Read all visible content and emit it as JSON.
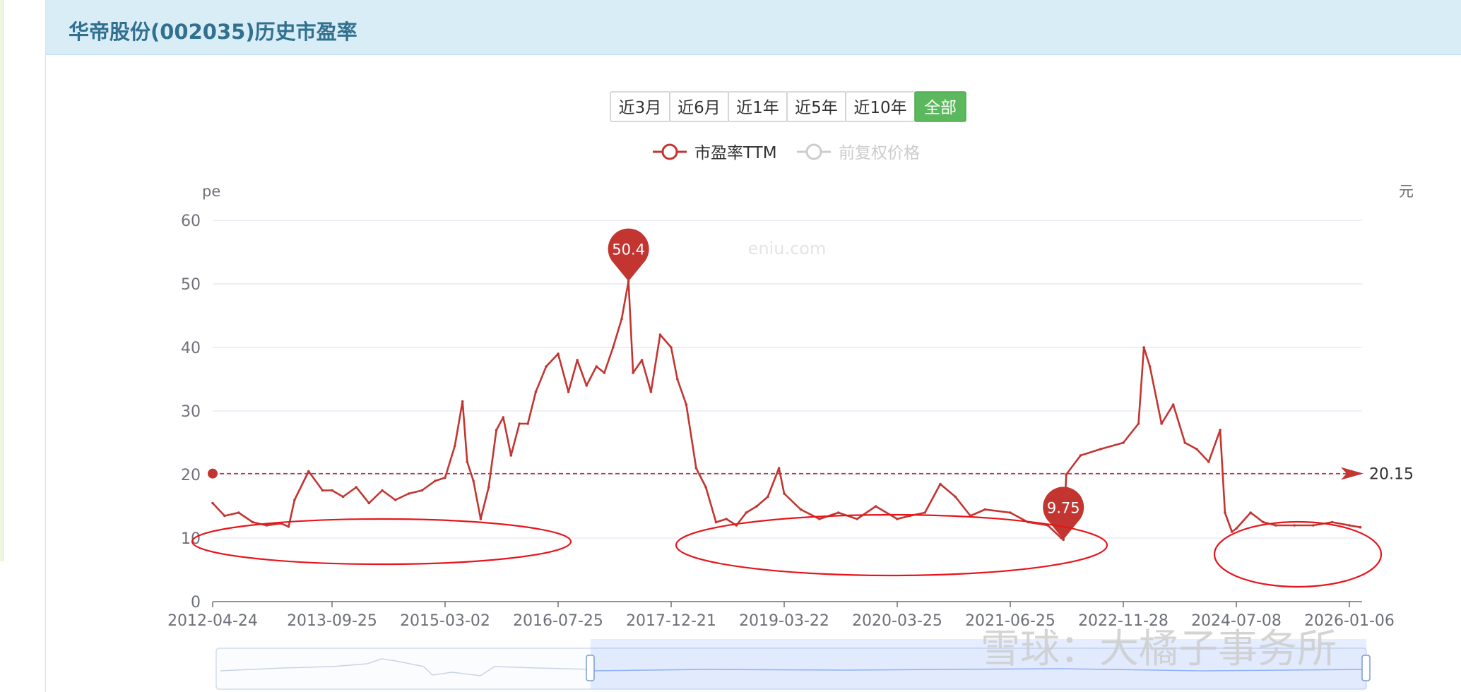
{
  "panel": {
    "title": "华帝股份(002035)历史市盈率"
  },
  "range_buttons": [
    {
      "label": "近3月",
      "active": false
    },
    {
      "label": "近6月",
      "active": false
    },
    {
      "label": "近1年",
      "active": false
    },
    {
      "label": "近5年",
      "active": false
    },
    {
      "label": "近10年",
      "active": false
    },
    {
      "label": "全部",
      "active": true
    }
  ],
  "colors": {
    "series": "#c23531",
    "ellipse": "#e8141b",
    "active_button": "#5cb85c",
    "grid": "#e0e6f1",
    "axis_text": "#6e7079"
  },
  "watermarks": {
    "site": "eniu.com",
    "overlay": "雪球：大橘子事务所"
  },
  "chart_data": {
    "type": "line",
    "legend": {
      "position": "top-center",
      "items": [
        {
          "name": "市盈率TTM",
          "enabled": true
        },
        {
          "name": "前复权价格",
          "enabled": false
        }
      ]
    },
    "yaxis_left": {
      "name": "pe",
      "ticks": [
        "0",
        "10",
        "20",
        "30",
        "40",
        "50",
        "60"
      ],
      "range": [
        0,
        60
      ]
    },
    "yaxis_right": {
      "name": "元"
    },
    "xaxis": {
      "ticks": [
        "2012-04-24",
        "2013-09-25",
        "2015-03-02",
        "2016-07-25",
        "2017-12-21",
        "2019-03-22",
        "2020-03-25",
        "2021-06-25",
        "2022-11-28",
        "2024-07-08",
        "2026-01-06"
      ]
    },
    "grid": true,
    "series": [
      {
        "name": "市盈率TTM",
        "x": [
          "2012-04-24",
          "2012-06-15",
          "2012-08-15",
          "2012-10-15",
          "2012-12-15",
          "2013-02-15",
          "2013-03-20",
          "2013-04-15",
          "2013-06-15",
          "2013-08-15",
          "2013-09-25",
          "2013-11-15",
          "2014-01-15",
          "2014-03-15",
          "2014-05-15",
          "2014-07-15",
          "2014-09-15",
          "2014-11-15",
          "2015-01-15",
          "2015-03-02",
          "2015-04-15",
          "2015-05-20",
          "2015-06-10",
          "2015-07-08",
          "2015-08-10",
          "2015-09-15",
          "2015-10-20",
          "2015-11-20",
          "2015-12-25",
          "2016-02-01",
          "2016-03-10",
          "2016-04-15",
          "2016-06-01",
          "2016-07-25",
          "2016-09-10",
          "2016-10-20",
          "2016-12-01",
          "2017-01-15",
          "2017-02-20",
          "2017-04-01",
          "2017-05-10",
          "2017-06-10",
          "2017-07-01",
          "2017-08-10",
          "2017-09-20",
          "2017-11-01",
          "2017-12-21",
          "2018-01-15",
          "2018-02-20",
          "2018-04-01",
          "2018-05-10",
          "2018-06-20",
          "2018-08-01",
          "2018-09-10",
          "2018-10-20",
          "2018-12-01",
          "2019-01-15",
          "2019-03-01",
          "2019-03-22",
          "2019-05-15",
          "2019-07-15",
          "2019-09-15",
          "2019-11-15",
          "2020-01-15",
          "2020-03-25",
          "2020-05-15",
          "2020-07-15",
          "2020-09-15",
          "2020-11-15",
          "2021-01-15",
          "2021-03-15",
          "2021-06-25",
          "2021-09-15",
          "2021-12-15",
          "2022-02-15",
          "2022-02-25",
          "2022-03-10",
          "2022-05-15",
          "2022-08-15",
          "2022-11-28",
          "2023-02-15",
          "2023-03-15",
          "2023-04-15",
          "2023-06-15",
          "2023-08-15",
          "2023-10-15",
          "2023-12-15",
          "2024-02-15",
          "2024-04-15",
          "2024-05-10",
          "2024-06-15",
          "2024-07-08",
          "2024-09-15",
          "2024-11-15",
          "2025-01-15",
          "2025-04-15",
          "2025-07-15",
          "2025-10-15",
          "2026-01-06",
          "2026-02-28"
        ],
        "values": [
          15.5,
          13.5,
          14.0,
          12.5,
          12.0,
          12.3,
          11.8,
          16.0,
          20.5,
          17.5,
          17.5,
          16.5,
          18.0,
          15.5,
          17.5,
          16.0,
          17.0,
          17.5,
          19.0,
          19.5,
          24.5,
          31.5,
          22.0,
          19.0,
          13.0,
          18.0,
          27.0,
          29.0,
          23.0,
          28.0,
          28.0,
          33.0,
          37.0,
          39.0,
          33.0,
          38.0,
          34.0,
          37.0,
          36.0,
          40.0,
          44.5,
          50.4,
          36.0,
          38.0,
          33.0,
          42.0,
          40.0,
          35.0,
          31.0,
          21.0,
          18.0,
          12.5,
          13.0,
          12.0,
          14.0,
          15.0,
          16.5,
          21.0,
          17.0,
          14.5,
          13.0,
          14.0,
          13.0,
          15.0,
          13.0,
          13.5,
          14.0,
          18.5,
          16.5,
          13.5,
          14.5,
          14.0,
          12.5,
          12.0,
          10.0,
          9.75,
          20.0,
          23.0,
          24.0,
          25.0,
          28.0,
          40.0,
          37.0,
          28.0,
          31.0,
          25.0,
          24.0,
          22.0,
          27.0,
          14.0,
          11.0,
          11.5,
          14.0,
          12.5,
          12.0,
          12.0,
          12.0,
          12.5,
          12.0,
          11.7
        ]
      }
    ],
    "markers": [
      {
        "label": "50.4",
        "x": "2017-06-10",
        "value": 50.4
      },
      {
        "label": "9.75",
        "x": "2022-02-25",
        "value": 9.75
      }
    ],
    "reference_line": {
      "label": "20.15",
      "value": 20.15
    }
  }
}
